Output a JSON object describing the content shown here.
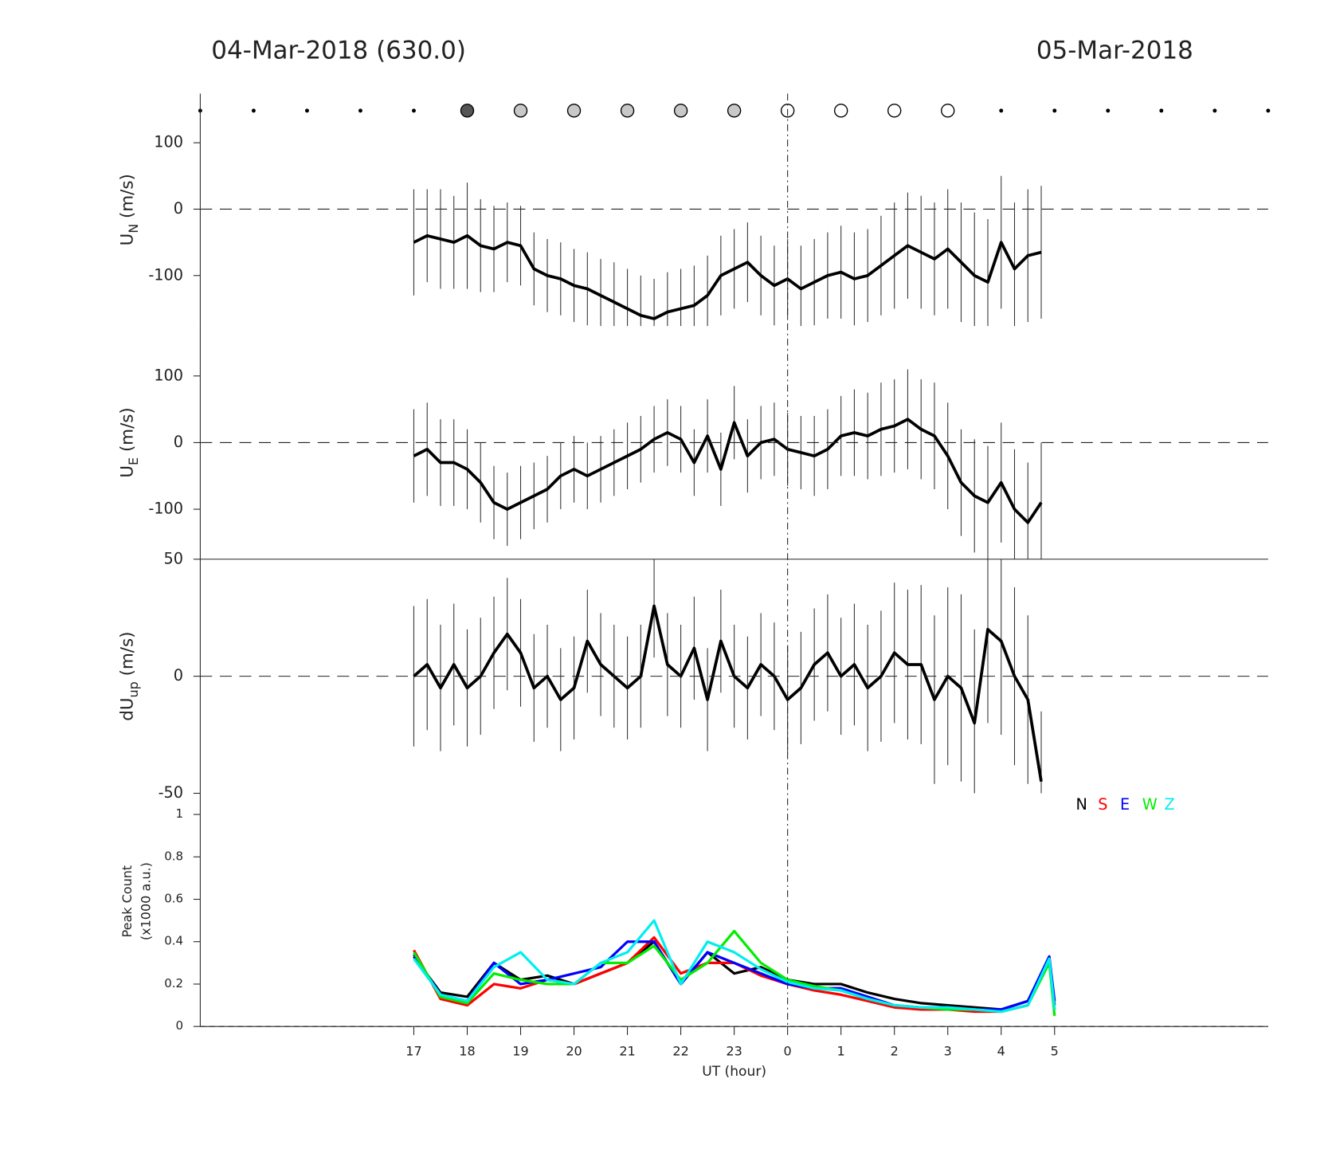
{
  "header": {
    "left": "04-Mar-2018 (630.0)",
    "right": "05-Mar-2018"
  },
  "markers": {
    "x": [
      13,
      14,
      15,
      16,
      17,
      18,
      19,
      20,
      21,
      22,
      23,
      24,
      25,
      26,
      27,
      28,
      29,
      30,
      31,
      32,
      33
    ],
    "colors": [
      "#000000",
      "#000000",
      "#000000",
      "#000000",
      "#000000",
      "#555555",
      "#c8c8c8",
      "#c8c8c8",
      "#c8c8c8",
      "#c8c8c8",
      "#c8c8c8",
      "#ffffff",
      "#ffffff",
      "#ffffff",
      "#ffffff",
      "#000000",
      "#000000",
      "#000000",
      "#000000",
      "#000000",
      "#000000"
    ]
  },
  "chart_data": [
    {
      "type": "errorbar-line",
      "ylabel": {
        "main": "U",
        "sub": "N",
        "unit": " (m/s)"
      },
      "color": "#000000",
      "x": [
        17,
        17.25,
        17.5,
        17.75,
        18,
        18.25,
        18.5,
        18.75,
        19,
        19.25,
        19.5,
        19.75,
        20,
        20.25,
        20.5,
        20.75,
        21,
        21.25,
        21.5,
        21.75,
        22,
        22.25,
        22.5,
        22.75,
        23,
        23.25,
        23.5,
        23.75,
        24,
        24.25,
        24.5,
        24.75,
        25,
        25.25,
        25.5,
        25.75,
        26,
        26.25,
        26.5,
        26.75,
        27,
        27.25,
        27.5,
        27.75,
        28,
        28.25,
        28.5,
        28.75
      ],
      "values": [
        -50,
        -40,
        -45,
        -50,
        -40,
        -55,
        -60,
        -50,
        -55,
        -90,
        -100,
        -105,
        -115,
        -120,
        -130,
        -140,
        -150,
        -160,
        -165,
        -155,
        -150,
        -145,
        -130,
        -100,
        -90,
        -80,
        -100,
        -115,
        -105,
        -120,
        -110,
        -100,
        -95,
        -105,
        -100,
        -85,
        -70,
        -55,
        -65,
        -75,
        -60,
        -80,
        -100,
        -110,
        -50,
        -90,
        -70,
        -65
      ],
      "errors": [
        80,
        70,
        75,
        70,
        80,
        70,
        65,
        60,
        60,
        55,
        55,
        55,
        55,
        55,
        55,
        60,
        60,
        60,
        60,
        60,
        60,
        60,
        60,
        60,
        60,
        60,
        60,
        60,
        60,
        65,
        65,
        65,
        70,
        70,
        70,
        75,
        80,
        80,
        85,
        85,
        90,
        90,
        95,
        95,
        100,
        100,
        100,
        100
      ],
      "xlim": [
        13,
        33
      ],
      "ylim": [
        -176,
        174
      ],
      "yticks": [
        -100,
        0,
        100
      ],
      "zero_line": true
    },
    {
      "type": "errorbar-line",
      "ylabel": {
        "main": "U",
        "sub": "E",
        "unit": " (m/s)"
      },
      "color": "#000000",
      "x": [
        17,
        17.25,
        17.5,
        17.75,
        18,
        18.25,
        18.5,
        18.75,
        19,
        19.25,
        19.5,
        19.75,
        20,
        20.25,
        20.5,
        20.75,
        21,
        21.25,
        21.5,
        21.75,
        22,
        22.25,
        22.5,
        22.75,
        23,
        23.25,
        23.5,
        23.75,
        24,
        24.25,
        24.5,
        24.75,
        25,
        25.25,
        25.5,
        25.75,
        26,
        26.25,
        26.5,
        26.75,
        27,
        27.25,
        27.5,
        27.75,
        28,
        28.25,
        28.5,
        28.75
      ],
      "values": [
        -20,
        -10,
        -30,
        -30,
        -40,
        -60,
        -90,
        -100,
        -90,
        -80,
        -70,
        -50,
        -40,
        -50,
        -40,
        -30,
        -20,
        -10,
        5,
        15,
        5,
        -30,
        10,
        -40,
        30,
        -20,
        0,
        5,
        -10,
        -15,
        -20,
        -10,
        10,
        15,
        10,
        20,
        25,
        35,
        20,
        10,
        -20,
        -60,
        -80,
        -90,
        -60,
        -100,
        -120,
        -90
      ],
      "errors": [
        70,
        70,
        65,
        65,
        60,
        60,
        55,
        55,
        55,
        50,
        50,
        50,
        50,
        50,
        50,
        50,
        50,
        50,
        50,
        50,
        50,
        50,
        55,
        55,
        55,
        55,
        55,
        55,
        55,
        55,
        60,
        60,
        60,
        65,
        65,
        70,
        70,
        75,
        75,
        80,
        80,
        80,
        85,
        85,
        90,
        90,
        90,
        90
      ],
      "xlim": [
        13,
        33
      ],
      "ylim": [
        -175,
        175
      ],
      "yticks": [
        -100,
        0,
        100
      ],
      "zero_line": true
    },
    {
      "type": "errorbar-line",
      "ylabel": {
        "main": "dU",
        "sub": "up",
        "unit": " (m/s)"
      },
      "color": "#000000",
      "x": [
        17,
        17.25,
        17.5,
        17.75,
        18,
        18.25,
        18.5,
        18.75,
        19,
        19.25,
        19.5,
        19.75,
        20,
        20.25,
        20.5,
        20.75,
        21,
        21.25,
        21.5,
        21.75,
        22,
        22.25,
        22.5,
        22.75,
        23,
        23.25,
        23.5,
        23.75,
        24,
        24.25,
        24.5,
        24.75,
        25,
        25.25,
        25.5,
        25.75,
        26,
        26.25,
        26.5,
        26.75,
        27,
        27.25,
        27.5,
        27.75,
        28,
        28.25,
        28.5,
        28.75
      ],
      "values": [
        0,
        5,
        -5,
        5,
        -5,
        0,
        10,
        18,
        10,
        -5,
        0,
        -10,
        -5,
        15,
        5,
        0,
        -5,
        0,
        30,
        5,
        0,
        12,
        -10,
        15,
        0,
        -5,
        5,
        0,
        -10,
        -5,
        5,
        10,
        0,
        5,
        -5,
        0,
        10,
        5,
        5,
        -10,
        0,
        -5,
        -20,
        20,
        15,
        0,
        -10,
        -45
      ],
      "errors": [
        30,
        28,
        27,
        26,
        25,
        25,
        24,
        24,
        23,
        23,
        22,
        22,
        22,
        22,
        22,
        22,
        22,
        22,
        22,
        22,
        22,
        22,
        22,
        22,
        22,
        22,
        22,
        23,
        23,
        24,
        24,
        25,
        25,
        26,
        27,
        28,
        30,
        32,
        34,
        36,
        38,
        40,
        40,
        40,
        40,
        38,
        36,
        30
      ],
      "xlim": [
        13,
        33
      ],
      "ylim": [
        -50,
        50
      ],
      "yticks": [
        -50,
        0,
        50
      ],
      "zero_line": true
    },
    {
      "type": "multi-line",
      "ylabel": {
        "lines": [
          "Peak Count",
          "(x1000 a.u.)"
        ]
      },
      "xlabel": "UT (hour)",
      "x": [
        17,
        17.5,
        18,
        18.5,
        19,
        19.5,
        20,
        20.5,
        21,
        21.5,
        22,
        22.5,
        23,
        23.5,
        24,
        24.5,
        25,
        25.5,
        26,
        26.5,
        27,
        27.5,
        28,
        28.5,
        28.9,
        29
      ],
      "series": [
        {
          "name": "N",
          "color": "#000000",
          "values": [
            0.33,
            0.16,
            0.14,
            0.3,
            0.22,
            0.24,
            0.2,
            0.25,
            0.3,
            0.4,
            0.2,
            0.35,
            0.25,
            0.28,
            0.22,
            0.2,
            0.2,
            0.16,
            0.13,
            0.11,
            0.1,
            0.09,
            0.08,
            0.12,
            0.32,
            0.1
          ]
        },
        {
          "name": "S",
          "color": "#ff0000",
          "values": [
            0.36,
            0.13,
            0.1,
            0.2,
            0.18,
            0.22,
            0.2,
            0.25,
            0.3,
            0.42,
            0.25,
            0.3,
            0.3,
            0.24,
            0.2,
            0.17,
            0.15,
            0.12,
            0.09,
            0.08,
            0.08,
            0.07,
            0.07,
            0.1,
            0.33,
            0.08
          ]
        },
        {
          "name": "E",
          "color": "#0000ff",
          "values": [
            0.34,
            0.15,
            0.12,
            0.3,
            0.2,
            0.22,
            0.25,
            0.28,
            0.4,
            0.4,
            0.2,
            0.35,
            0.3,
            0.25,
            0.2,
            0.18,
            0.18,
            0.14,
            0.1,
            0.09,
            0.09,
            0.08,
            0.08,
            0.12,
            0.33,
            0.12
          ]
        },
        {
          "name": "W",
          "color": "#00ee00",
          "values": [
            0.35,
            0.14,
            0.11,
            0.25,
            0.22,
            0.2,
            0.2,
            0.3,
            0.3,
            0.38,
            0.22,
            0.3,
            0.45,
            0.3,
            0.22,
            0.19,
            0.17,
            0.13,
            0.1,
            0.09,
            0.08,
            0.08,
            0.07,
            0.1,
            0.3,
            0.05
          ]
        },
        {
          "name": "Z",
          "color": "#00eeee",
          "values": [
            0.32,
            0.15,
            0.12,
            0.28,
            0.35,
            0.22,
            0.2,
            0.3,
            0.35,
            0.5,
            0.2,
            0.4,
            0.35,
            0.27,
            0.21,
            0.18,
            0.17,
            0.13,
            0.1,
            0.09,
            0.09,
            0.08,
            0.07,
            0.1,
            0.32,
            0.08
          ]
        }
      ],
      "xlim": [
        13,
        33
      ],
      "ylim": [
        0,
        1.1
      ],
      "yticks": [
        0,
        0.2,
        0.4,
        0.6,
        0.8,
        1
      ],
      "zero_line": true,
      "xticks": [
        17,
        18,
        19,
        20,
        21,
        22,
        23,
        {
          "value": 24,
          "label": "0"
        },
        {
          "value": 25,
          "label": "1"
        },
        {
          "value": 26,
          "label": "2"
        },
        {
          "value": 27,
          "label": "3"
        },
        {
          "value": 28,
          "label": "4"
        },
        {
          "value": 29,
          "label": "5"
        }
      ],
      "midnight_line": 24
    }
  ]
}
